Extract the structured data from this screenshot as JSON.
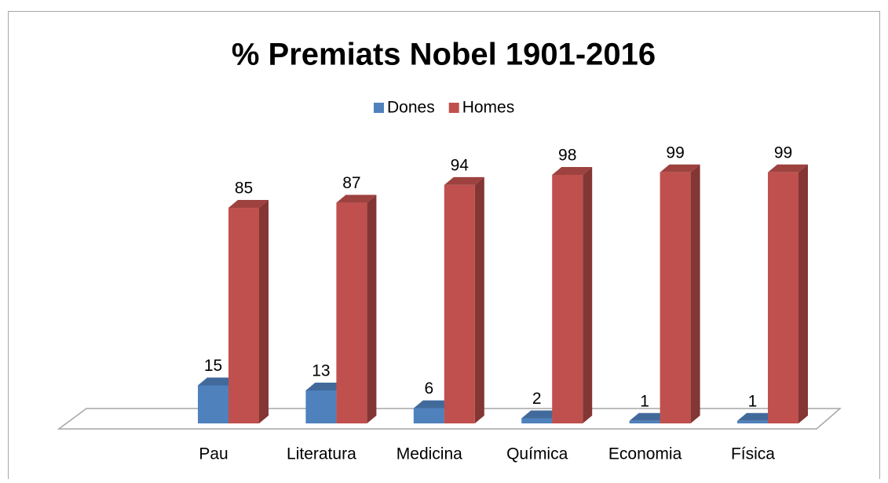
{
  "chart_data": {
    "type": "bar3d",
    "title": "% Premiats Nobel 1901-2016",
    "categories": [
      "Pau",
      "Literatura",
      "Medicina",
      "Química",
      "Economia",
      "Física"
    ],
    "series": [
      {
        "name": "Dones",
        "color": "#4f81bd",
        "values": [
          15,
          13,
          6,
          2,
          1,
          1
        ]
      },
      {
        "name": "Homes",
        "color": "#c0504d",
        "values": [
          85,
          87,
          94,
          98,
          99,
          99
        ]
      }
    ],
    "legend": "top"
  }
}
